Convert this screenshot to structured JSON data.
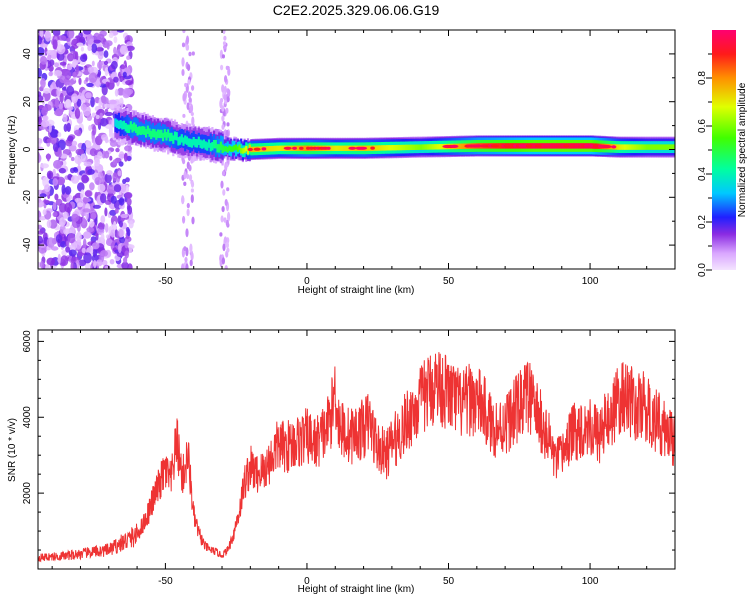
{
  "title": "C2E2.2025.329.06.06.G19",
  "chart_data": [
    {
      "type": "heatmap",
      "xlabel": "Height of straight line (km)",
      "ylabel": "Frequency (Hz)",
      "xlim": [
        -95,
        130
      ],
      "ylim": [
        -50,
        50
      ],
      "xticks": [
        -50,
        0,
        50,
        100
      ],
      "yticks": [
        -40,
        -20,
        0,
        20,
        40
      ],
      "ridge_x": [
        -68,
        -62,
        -55,
        -50,
        -45,
        -40,
        -35,
        -30,
        -25,
        -20,
        -10,
        0,
        10,
        20,
        40,
        60,
        80,
        100,
        110,
        120,
        130
      ],
      "ridge_freq": [
        11,
        9,
        7,
        6,
        4,
        3,
        2,
        1,
        0,
        0,
        0.5,
        0.5,
        0.5,
        0.5,
        1,
        1.5,
        1.5,
        1.5,
        1,
        1,
        1
      ],
      "ridge_amplitude": [
        0.35,
        0.45,
        0.45,
        0.45,
        0.4,
        0.4,
        0.4,
        0.5,
        0.55,
        0.75,
        0.7,
        0.8,
        0.7,
        0.75,
        0.6,
        0.85,
        0.95,
        0.95,
        0.7,
        0.6,
        0.6
      ],
      "colorbar": {
        "label": "Normalized spectral amplitude",
        "ticks": [
          "0.0",
          "0.2",
          "0.4",
          "0.6",
          "0.8"
        ],
        "range": [
          0,
          1
        ]
      }
    },
    {
      "type": "line",
      "xlabel": "Height of straight line (km)",
      "ylabel": "SNR (10 * v/v)",
      "xlim": [
        -95,
        130
      ],
      "ylim": [
        0,
        6300
      ],
      "xticks": [
        -50,
        0,
        50,
        100
      ],
      "yticks": [
        2000,
        4000,
        6000
      ],
      "color": "#ee3333",
      "series": [
        {
          "x": [
            -95,
            -85,
            -75,
            -70,
            -65,
            -60,
            -57,
            -54,
            -50,
            -48,
            -46,
            -44,
            -42,
            -40,
            -38,
            -36,
            -34,
            -32,
            -30,
            -28,
            -26,
            -24,
            -22,
            -20,
            -18,
            -15,
            -12,
            -10,
            -8,
            -5,
            -2,
            0,
            3,
            5,
            7,
            9,
            10,
            11,
            12,
            15,
            18,
            20,
            22,
            25,
            28,
            30,
            33,
            36,
            40,
            43,
            46,
            50,
            55,
            58,
            62,
            65,
            68,
            72,
            75,
            78,
            80,
            83,
            86,
            88,
            90,
            93,
            96,
            100,
            103,
            106,
            110,
            113,
            116,
            119,
            122,
            126,
            130
          ],
          "y": [
            300,
            350,
            450,
            500,
            700,
            900,
            1300,
            1900,
            2600,
            2300,
            3400,
            2400,
            3000,
            1400,
            900,
            600,
            500,
            450,
            350,
            500,
            900,
            1500,
            2300,
            2700,
            2500,
            2600,
            3000,
            3300,
            3200,
            3300,
            3400,
            3500,
            3300,
            3500,
            3700,
            4200,
            4800,
            4000,
            3700,
            3500,
            3600,
            3700,
            3900,
            3200,
            3000,
            3300,
            3600,
            4000,
            4400,
            4700,
            4900,
            4600,
            4300,
            4500,
            4300,
            3800,
            3700,
            4000,
            4300,
            4600,
            4300,
            3800,
            3300,
            2800,
            3000,
            3500,
            3700,
            3800,
            3500,
            3900,
            4400,
            4600,
            4200,
            4300,
            4000,
            3700,
            3400
          ]
        }
      ]
    }
  ]
}
